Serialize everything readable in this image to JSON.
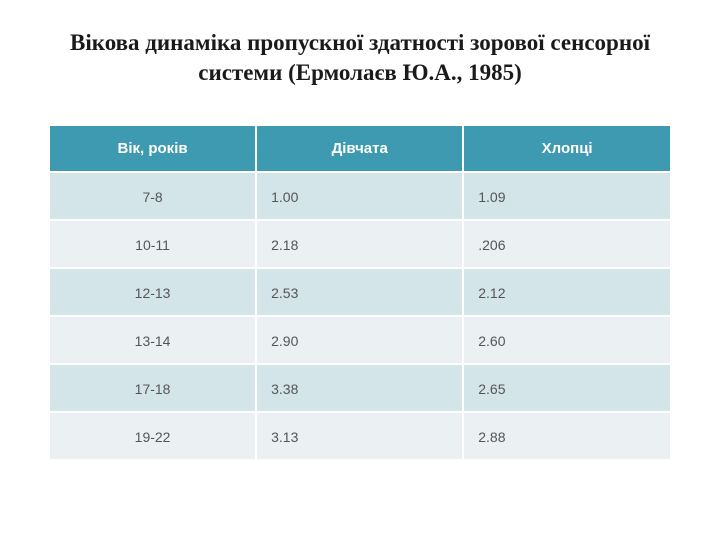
{
  "title": "Вікова динаміка пропускної здатності зорової сенсорної системи (Ермолаєв Ю.А., 1985)",
  "table": {
    "columns": [
      "Вік, років",
      "Дівчата",
      "Хлопці"
    ],
    "rows": [
      {
        "age": "7-8",
        "girls": "1.00",
        "boys": "1.09"
      },
      {
        "age": "10-11",
        "girls": "2.18",
        "boys": ".206"
      },
      {
        "age": "12-13",
        "girls": "2.53",
        "boys": "2.12"
      },
      {
        "age": "13-14",
        "girls": "2.90",
        "boys": "2.60"
      },
      {
        "age": "17-18",
        "girls": "3.38",
        "boys": "2.65"
      },
      {
        "age": "19-22",
        "girls": "3.13",
        "boys": "2.88"
      }
    ],
    "header_bg": "#3e9ab0",
    "header_fg": "#ffffff",
    "row_odd_bg": "#d4e5ea",
    "row_even_bg": "#ebf1f3",
    "cell_fg": "#555555",
    "border_color": "#ffffff",
    "header_fontsize": 15,
    "cell_fontsize": 14
  },
  "background": "#ffffff",
  "title_fontsize": 23,
  "title_color": "#1a1a1a"
}
